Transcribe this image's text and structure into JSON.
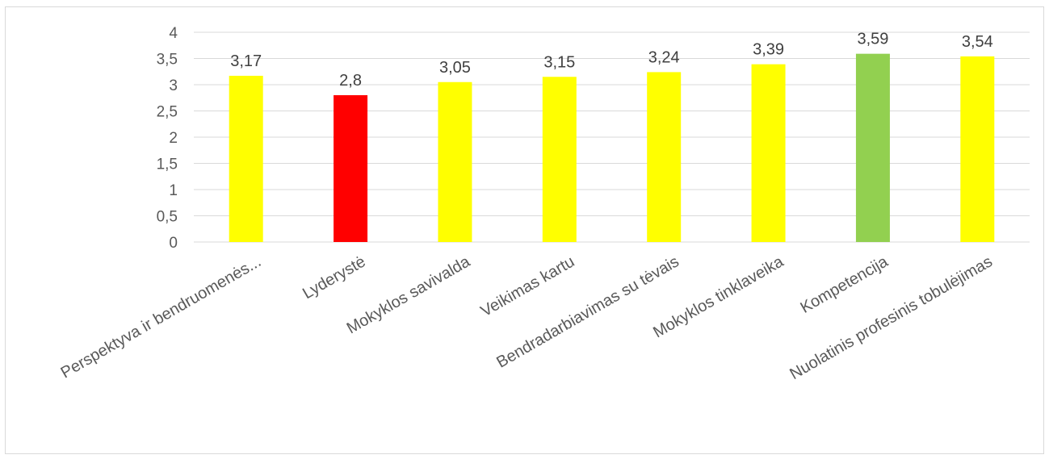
{
  "chart_data": {
    "type": "bar",
    "categories": [
      "Perspektyva ir bendruomenės...",
      "Lyderystė",
      "Mokyklos savivalda",
      "Veikimas kartu",
      "Bendradarbiavimas su tėvais",
      "Mokyklos tinklaveika",
      "Kompetencija",
      "Nuolatinis profesinis tobulėjimas"
    ],
    "values": [
      3.17,
      2.8,
      3.05,
      3.15,
      3.24,
      3.39,
      3.59,
      3.54
    ],
    "data_labels": [
      "3,17",
      "2,8",
      "3,05",
      "3,15",
      "3,24",
      "3,39",
      "3,59",
      "3,54"
    ],
    "bar_colors": [
      "#ffff00",
      "#ff0000",
      "#ffff00",
      "#ffff00",
      "#ffff00",
      "#ffff00",
      "#92d050",
      "#ffff00"
    ],
    "yticks": [
      0,
      0.5,
      1,
      1.5,
      2,
      2.5,
      3,
      3.5,
      4
    ],
    "ytick_labels": [
      "0",
      "0,5",
      "1",
      "1,5",
      "2",
      "2,5",
      "3",
      "3,5",
      "4"
    ],
    "ylim": [
      0,
      4
    ],
    "grid": true,
    "legend": "none",
    "title": "",
    "xlabel": "",
    "ylabel": ""
  }
}
